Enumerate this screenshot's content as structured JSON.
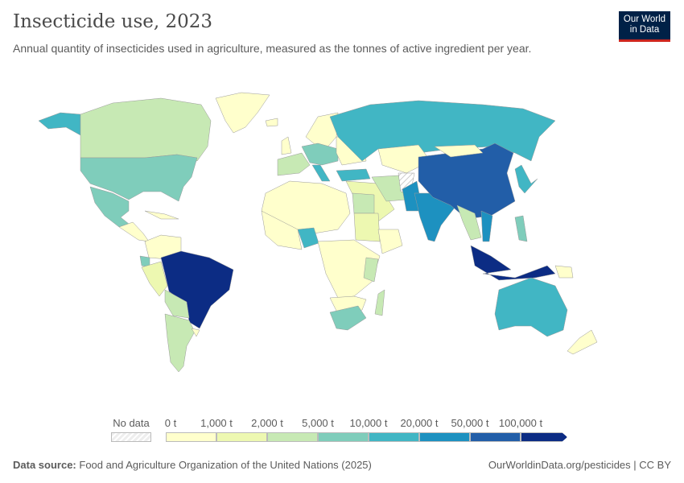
{
  "header": {
    "title": "Insecticide use, 2023",
    "subtitle": "Annual quantity of insecticides used in agriculture, measured as the tonnes of active ingredient per year.",
    "logo_text": "Our World in Data"
  },
  "legend": {
    "no_data_label": "No data",
    "no_data_color": "#e9e9e9",
    "ticks": [
      "0 t",
      "1,000 t",
      "2,000 t",
      "5,000 t",
      "10,000 t",
      "20,000 t",
      "50,000 t",
      "100,000 t"
    ],
    "colors": [
      "#ffffcc",
      "#edf8b1",
      "#c7e9b4",
      "#7fcdbb",
      "#41b6c4",
      "#1d91c0",
      "#225ea8",
      "#0c2c84"
    ]
  },
  "footer": {
    "source_label": "Data source:",
    "source": "Food and Agriculture Organization of the United Nations (2025)",
    "link": "OurWorldinData.org/pesticides | CC BY"
  }
}
